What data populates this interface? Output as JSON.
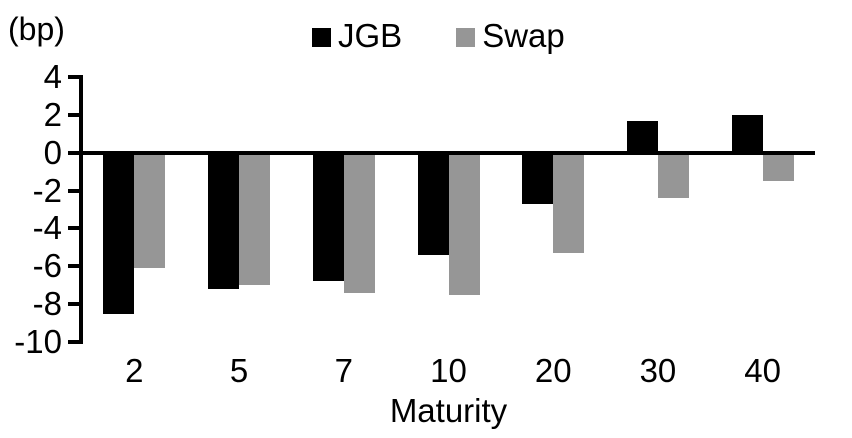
{
  "chart_data": {
    "type": "bar",
    "title": "",
    "unit_label": "(bp)",
    "xlabel": "Maturity",
    "ylabel": "",
    "categories": [
      "2",
      "5",
      "7",
      "10",
      "20",
      "30",
      "40"
    ],
    "series": [
      {
        "name": "JGB",
        "color": "#000000",
        "values": [
          -8.5,
          -7.2,
          -6.8,
          -5.4,
          -2.7,
          1.7,
          2.0
        ]
      },
      {
        "name": "Swap",
        "color": "#969696",
        "values": [
          -6.1,
          -7.0,
          -7.4,
          -7.5,
          -5.3,
          -2.4,
          -1.5
        ]
      }
    ],
    "ylim": [
      -10,
      4
    ],
    "yticks": [
      4,
      2,
      0,
      -2,
      -4,
      -6,
      -8,
      -10
    ],
    "grid": false,
    "legend_position": "top-center",
    "baseline": 0
  }
}
